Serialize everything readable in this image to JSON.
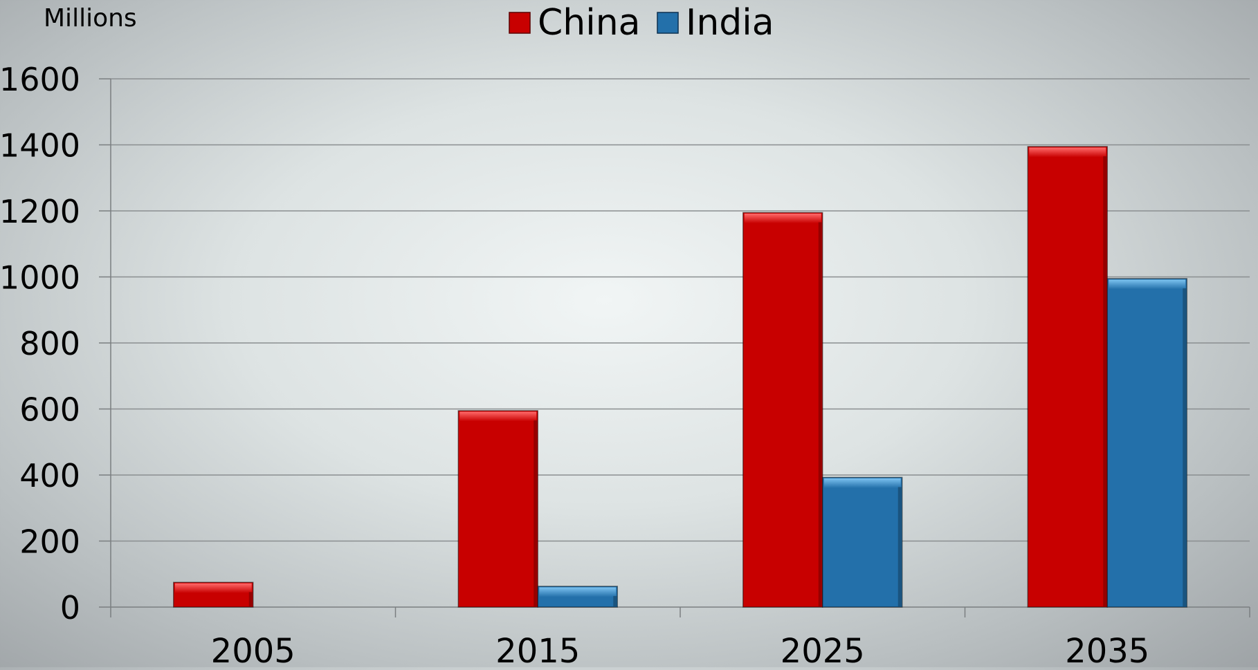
{
  "chart_data": {
    "type": "bar",
    "unit_label": "Millions",
    "categories": [
      "2005",
      "2015",
      "2025",
      "2035"
    ],
    "series": [
      {
        "name": "China",
        "color": "#c80000",
        "values": [
          75,
          595,
          1195,
          1395
        ]
      },
      {
        "name": "India",
        "color": "#2370aa",
        "values": [
          0,
          63,
          393,
          995
        ]
      }
    ],
    "yticks": [
      "0",
      "200",
      "400",
      "600",
      "800",
      "1000",
      "1200",
      "1400",
      "1600"
    ],
    "ylim": [
      0,
      1600
    ],
    "grid": true,
    "legend_position": "top-center"
  }
}
